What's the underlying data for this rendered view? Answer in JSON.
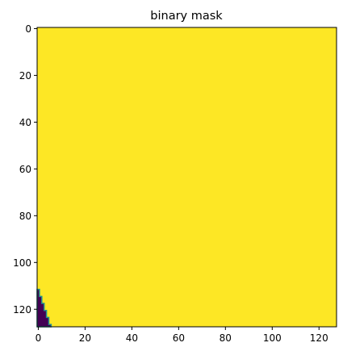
{
  "chart_data": {
    "type": "heatmap",
    "title": "binary mask",
    "xlabel": "",
    "ylabel": "",
    "image_size": [
      128,
      128
    ],
    "xlim": [
      -0.5,
      127.5
    ],
    "ylim": [
      127.5,
      -0.5
    ],
    "xticks": [
      0,
      20,
      40,
      60,
      80,
      100,
      120
    ],
    "yticks": [
      0,
      20,
      40,
      60,
      80,
      100,
      120
    ],
    "xtick_labels": [
      "0",
      "20",
      "40",
      "60",
      "80",
      "100",
      "120"
    ],
    "ytick_labels": [
      "0",
      "20",
      "40",
      "60",
      "80",
      "100",
      "120"
    ],
    "colormap": "viridis",
    "value_colors": {
      "0": "#440154",
      "1": "#fde725"
    },
    "edge_color": "#21918c",
    "grid": false,
    "background_value": 1,
    "zero_region_profile": [
      {
        "row": 112,
        "max_col": 0
      },
      {
        "row": 115,
        "max_col": 1
      },
      {
        "row": 118,
        "max_col": 2
      },
      {
        "row": 121,
        "max_col": 3
      },
      {
        "row": 124,
        "max_col": 4
      },
      {
        "row": 127,
        "max_col": 5
      }
    ]
  }
}
